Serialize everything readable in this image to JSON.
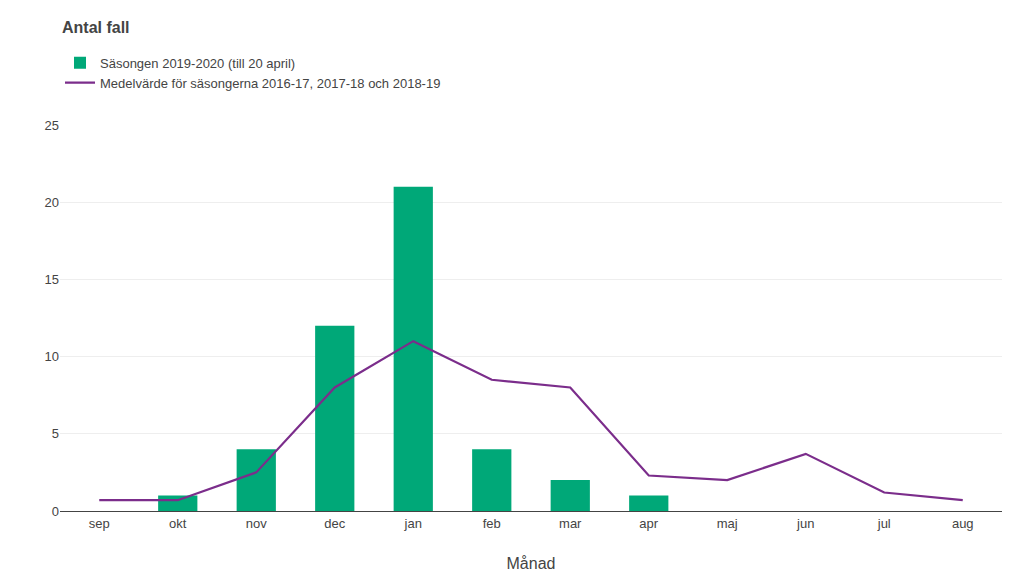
{
  "chart_data": {
    "type": "bar",
    "ylabel": "Antal fall",
    "xlabel": "Månad",
    "categories": [
      "sep",
      "okt",
      "nov",
      "dec",
      "jan",
      "feb",
      "mar",
      "apr",
      "maj",
      "jun",
      "jul",
      "aug"
    ],
    "series": [
      {
        "name": "Säsongen 2019-2020 (till 20 april)",
        "type": "bar",
        "color": "#00A878",
        "values": [
          0,
          1,
          4,
          12,
          21,
          4,
          2,
          1,
          0,
          0,
          0,
          0
        ]
      },
      {
        "name": "Medelvärde för säsongerna 2016-17, 2017-18 och 2018-19",
        "type": "line",
        "color": "#7B2D8B",
        "values": [
          0.7,
          0.7,
          2.5,
          8,
          11,
          8.5,
          8,
          2.3,
          2,
          3.7,
          1.2,
          0.7
        ]
      }
    ],
    "ylim": [
      0,
      25
    ],
    "yticks": [
      0,
      5,
      10,
      15,
      20,
      25
    ],
    "grid": true,
    "legend": "upper left"
  }
}
